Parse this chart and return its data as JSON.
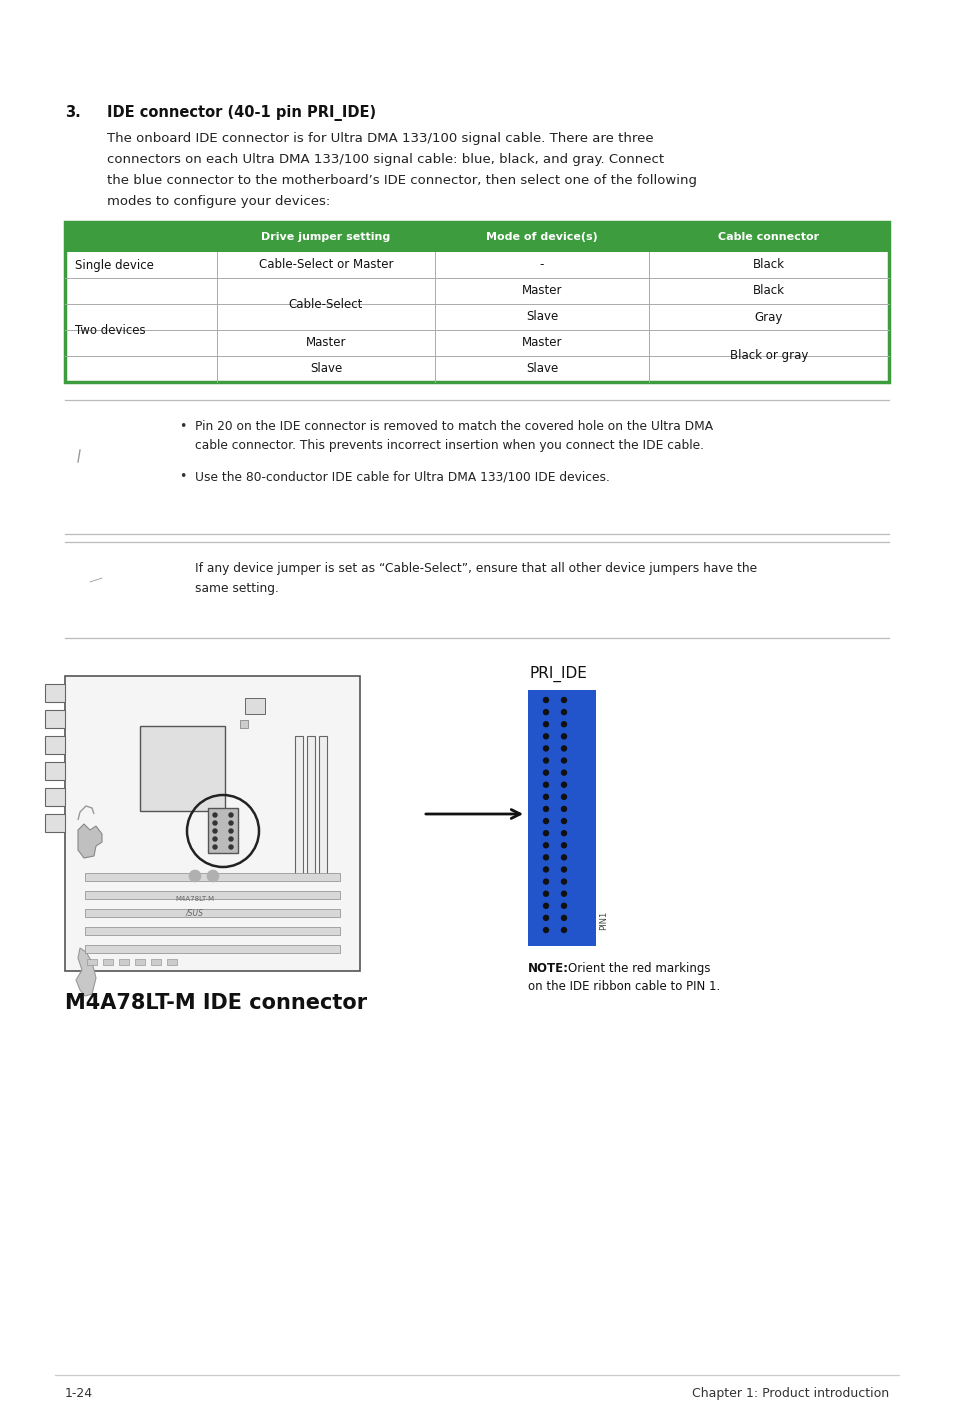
{
  "bg_color": "#ffffff",
  "section_number": "3.",
  "section_title": "IDE connector (40-1 pin PRI_IDE)",
  "body_text": "The onboard IDE connector is for Ultra DMA 133/100 signal cable. There are three\nconnectors on each Ultra DMA 133/100 signal cable: blue, black, and gray. Connect\nthe blue connector to the motherboard’s IDE connector, then select one of the following\nmodes to configure your devices:",
  "table_header_bg": "#3d9c3d",
  "table_header_color": "#ffffff",
  "table_col2_header": "Drive jumper setting",
  "table_col3_header": "Mode of device(s)",
  "table_col4_header": "Cable connector",
  "table_border_color": "#3d9c3d",
  "table_inner_line_color": "#aaaaaa",
  "note1_bullets": [
    "Pin 20 on the IDE connector is removed to match the covered hole on the Ultra DMA\ncable connector. This prevents incorrect insertion when you connect the IDE cable.",
    "Use the 80-conductor IDE cable for Ultra DMA 133/100 IDE devices."
  ],
  "note2_text": "If any device jumper is set as “Cable-Select”, ensure that all other device jumpers have the\nsame setting.",
  "connector_label": "PRI_IDE",
  "connector_note_bold": "NOTE:",
  "connector_note_rest": "Orient the red markings",
  "connector_note_line2": "on the IDE ribbon cable to PIN 1.",
  "caption": "M4A78LT-M IDE connector",
  "footer_left": "1-24",
  "footer_right": "Chapter 1: Product introduction",
  "footer_line_color": "#cccccc",
  "sep_line_color": "#bbbbbb",
  "text_color": "#222222",
  "body_fontsize": 9.5,
  "small_fontsize": 8.5,
  "caption_fontsize": 15,
  "section_fontsize": 10.5
}
